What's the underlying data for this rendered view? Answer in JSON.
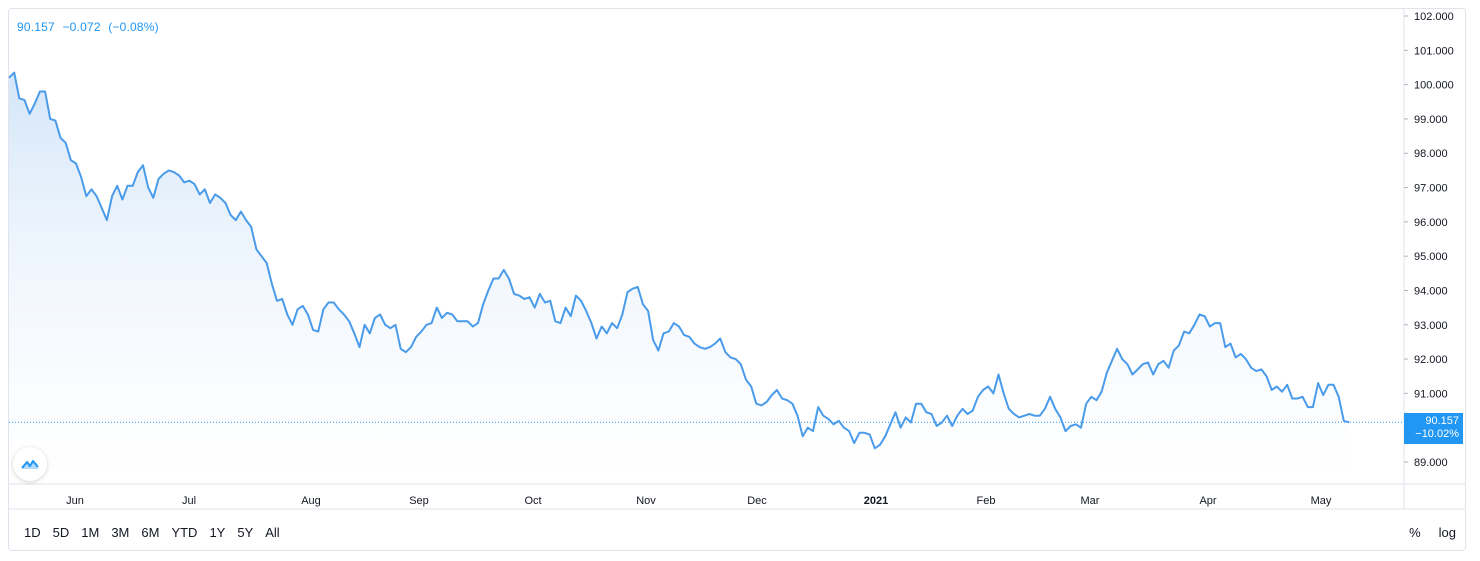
{
  "legend": {
    "price": "90.157",
    "change": "−0.072",
    "change_pct": "(−0.08%)"
  },
  "last_label": {
    "price": "90.157",
    "pct": "−10.02%"
  },
  "colors": {
    "line": "#4a9bea",
    "fill_top": "#cfe3f8",
    "fill_bottom": "#ffffff",
    "accent": "#2196f3",
    "grid_border": "#e0e3eb"
  },
  "toolbar": {
    "ranges": [
      "1D",
      "5D",
      "1M",
      "3M",
      "6M",
      "YTD",
      "1Y",
      "5Y",
      "All"
    ],
    "percent": "%",
    "log": "log"
  },
  "logo_icon": "tradingview-cloud-icon",
  "chart_data": {
    "type": "area",
    "title": "",
    "xlabel": "",
    "ylabel": "",
    "y_ticks": [
      "102.000",
      "101.000",
      "100.000",
      "99.000",
      "98.000",
      "97.000",
      "96.000",
      "95.000",
      "94.000",
      "93.000",
      "92.000",
      "91.000",
      "89.000"
    ],
    "x_ticks": [
      "Jun",
      "Jul",
      "Aug",
      "Sep",
      "Oct",
      "Nov",
      "Dec",
      "2021",
      "Feb",
      "Mar",
      "Apr",
      "May"
    ],
    "ylim": [
      88.6,
      102.3
    ],
    "last_value": 90.157,
    "grid": false,
    "series": [
      {
        "values": [
          100.2,
          100.35,
          99.6,
          99.55,
          99.15,
          99.45,
          99.8,
          99.8,
          99.0,
          98.95,
          98.45,
          98.3,
          97.8,
          97.7,
          97.3,
          96.75,
          96.95,
          96.75,
          96.4,
          96.05,
          96.75,
          97.05,
          96.65,
          97.05,
          97.05,
          97.45,
          97.65,
          97.0,
          96.7,
          97.25,
          97.4,
          97.5,
          97.45,
          97.35,
          97.15,
          97.2,
          97.1,
          96.8,
          96.95,
          96.55,
          96.8,
          96.7,
          96.55,
          96.2,
          96.05,
          96.3,
          96.05,
          95.85,
          95.2,
          95.0,
          94.8,
          94.2,
          93.7,
          93.75,
          93.3,
          93.0,
          93.45,
          93.55,
          93.3,
          92.85,
          92.8,
          93.45,
          93.65,
          93.65,
          93.45,
          93.3,
          93.1,
          92.75,
          92.35,
          93.0,
          92.75,
          93.2,
          93.3,
          93.0,
          92.9,
          93.0,
          92.3,
          92.2,
          92.35,
          92.65,
          92.8,
          93.0,
          93.05,
          93.5,
          93.2,
          93.35,
          93.3,
          93.1,
          93.1,
          93.1,
          92.95,
          93.05,
          93.6,
          94.0,
          94.35,
          94.35,
          94.6,
          94.35,
          93.9,
          93.85,
          93.75,
          93.8,
          93.5,
          93.9,
          93.65,
          93.7,
          93.1,
          93.05,
          93.5,
          93.25,
          93.85,
          93.7,
          93.4,
          93.05,
          92.6,
          92.95,
          92.75,
          93.05,
          92.9,
          93.3,
          93.95,
          94.05,
          94.1,
          93.6,
          93.4,
          92.55,
          92.25,
          92.75,
          92.8,
          93.05,
          92.95,
          92.7,
          92.65,
          92.45,
          92.35,
          92.3,
          92.35,
          92.45,
          92.6,
          92.2,
          92.05,
          92.0,
          91.85,
          91.4,
          91.2,
          90.7,
          90.65,
          90.75,
          90.95,
          91.1,
          90.85,
          90.8,
          90.7,
          90.35,
          89.75,
          90.0,
          89.9,
          90.6,
          90.35,
          90.25,
          90.1,
          90.2,
          90.0,
          89.9,
          89.55,
          89.85,
          89.85,
          89.8,
          89.4,
          89.5,
          89.75,
          90.1,
          90.45,
          90.0,
          90.3,
          90.15,
          90.7,
          90.7,
          90.45,
          90.4,
          90.05,
          90.15,
          90.35,
          90.05,
          90.35,
          90.55,
          90.4,
          90.5,
          90.9,
          91.1,
          91.2,
          91.0,
          91.55,
          91.0,
          90.55,
          90.4,
          90.3,
          90.35,
          90.4,
          90.35,
          90.35,
          90.55,
          90.9,
          90.55,
          90.3,
          89.9,
          90.05,
          90.1,
          90.0,
          90.7,
          90.9,
          90.8,
          91.05,
          91.6,
          91.95,
          92.3,
          92.0,
          91.85,
          91.55,
          91.7,
          91.85,
          91.9,
          91.55,
          91.85,
          91.95,
          91.75,
          92.25,
          92.4,
          92.8,
          92.75,
          93.0,
          93.3,
          93.25,
          92.95,
          93.05,
          93.05,
          92.35,
          92.45,
          92.05,
          92.15,
          92.0,
          91.75,
          91.65,
          91.7,
          91.5,
          91.1,
          91.2,
          91.05,
          91.25,
          90.85,
          90.85,
          90.9,
          90.6,
          90.6,
          91.3,
          90.95,
          91.25,
          91.25,
          90.9,
          90.2,
          90.157
        ]
      }
    ]
  }
}
